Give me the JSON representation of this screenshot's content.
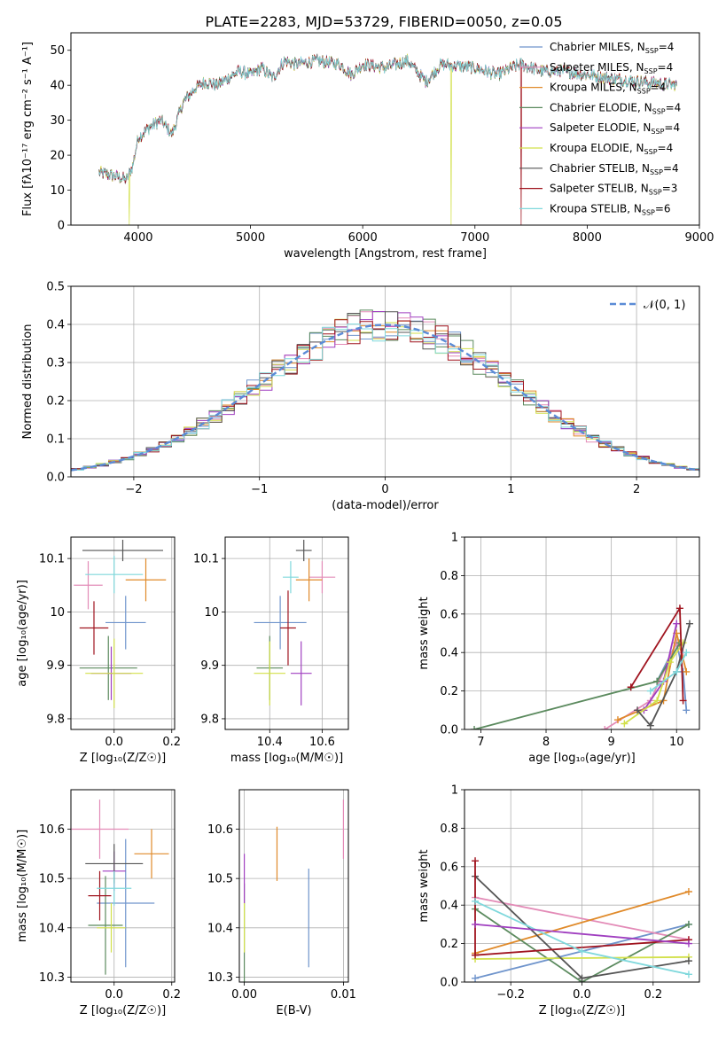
{
  "figure_title": "PLATE=2283, MJD=53729, FIBERID=0050, z=0.05",
  "models": [
    {
      "name": "Chabrier MILES",
      "nssp": "4",
      "color": "#6f94cc"
    },
    {
      "name": "Salpeter MILES",
      "nssp": "4",
      "color": "#e38bb7"
    },
    {
      "name": "Kroupa MILES",
      "nssp": "4",
      "color": "#e08a2a"
    },
    {
      "name": "Chabrier ELODIE",
      "nssp": "4",
      "color": "#5b8a5e"
    },
    {
      "name": "Salpeter ELODIE",
      "nssp": "4",
      "color": "#a03fc0"
    },
    {
      "name": "Kroupa ELODIE",
      "nssp": "4",
      "color": "#d2e04a"
    },
    {
      "name": "Chabrier STELIB",
      "nssp": "4",
      "color": "#555555"
    },
    {
      "name": "Salpeter STELIB",
      "nssp": "3",
      "color": "#a0141f"
    },
    {
      "name": "Kroupa STELIB",
      "nssp": "6",
      "color": "#7fd8dc"
    }
  ],
  "chart_data": [
    {
      "id": "spectrum",
      "type": "line",
      "xlabel": "wavelength [Angstrom, rest frame]",
      "ylabel": "Flux [fλ10⁻¹⁷ erg cm⁻² s⁻¹ A⁻¹]",
      "xlim": [
        3400,
        9000
      ],
      "ylim": [
        0,
        55
      ],
      "xticks": [
        4000,
        5000,
        6000,
        7000,
        8000,
        9000
      ],
      "yticks": [
        0,
        10,
        20,
        30,
        40,
        50
      ],
      "grid": false,
      "legend_position": "right",
      "x_range_data": [
        3650,
        8800
      ],
      "flux_shape": [
        [
          3650,
          15
        ],
        [
          3800,
          14
        ],
        [
          3900,
          13
        ],
        [
          3950,
          17
        ],
        [
          4000,
          25
        ],
        [
          4100,
          28
        ],
        [
          4200,
          30
        ],
        [
          4300,
          26
        ],
        [
          4400,
          35
        ],
        [
          4500,
          39
        ],
        [
          4600,
          41
        ],
        [
          4700,
          40
        ],
        [
          4800,
          42
        ],
        [
          4900,
          44
        ],
        [
          5000,
          43
        ],
        [
          5100,
          45
        ],
        [
          5200,
          42
        ],
        [
          5300,
          47
        ],
        [
          5400,
          46
        ],
        [
          5600,
          47
        ],
        [
          5800,
          46
        ],
        [
          5900,
          43
        ],
        [
          6000,
          46
        ],
        [
          6200,
          45
        ],
        [
          6400,
          47
        ],
        [
          6563,
          41
        ],
        [
          6700,
          46
        ],
        [
          7000,
          45
        ],
        [
          7200,
          43
        ],
        [
          7400,
          46
        ],
        [
          7600,
          44
        ],
        [
          7800,
          44
        ],
        [
          8000,
          43
        ],
        [
          8200,
          42
        ],
        [
          8500,
          41
        ],
        [
          8800,
          40
        ]
      ],
      "drops": [
        {
          "x": 3920,
          "model": 5
        },
        {
          "x": 6790,
          "model": 5
        },
        {
          "x": 7410,
          "model": 7
        }
      ]
    },
    {
      "id": "residuals",
      "type": "line",
      "xlabel": "(data-model)/error",
      "ylabel": "Normed distribution",
      "xlim": [
        -2.5,
        2.5
      ],
      "ylim": [
        0,
        0.5
      ],
      "xticks": [
        -2,
        -1,
        0,
        1,
        2
      ],
      "yticks": [
        0.0,
        0.1,
        0.2,
        0.3,
        0.4,
        0.5
      ],
      "grid": true,
      "legend_position": "top-right",
      "reference_label": "𝒩(0, 1)",
      "reference_color": "#5b8bd6",
      "bin_width": 0.1,
      "bin_start": -2.5
    },
    {
      "id": "age_vs_Z",
      "type": "scatter",
      "xlabel": "Z [log₁₀(Z/Z☉)]",
      "ylabel": "age  [log₁₀(age/yr)]",
      "xlim": [
        -0.15,
        0.21
      ],
      "ylim": [
        9.78,
        10.14
      ],
      "xticks": [
        0.0,
        0.2
      ],
      "yticks": [
        9.8,
        9.9,
        10.0,
        10.1
      ],
      "grid": true,
      "points": [
        {
          "model": 0,
          "x": 0.04,
          "xerr": 0.07,
          "y": 9.98,
          "yerr": 0.05
        },
        {
          "model": 1,
          "x": -0.09,
          "xerr": 0.05,
          "y": 10.05,
          "yerr": 0.045
        },
        {
          "model": 2,
          "x": 0.11,
          "xerr": 0.07,
          "y": 10.06,
          "yerr": 0.04
        },
        {
          "model": 3,
          "x": -0.02,
          "xerr": 0.1,
          "y": 9.895,
          "yerr": 0.06
        },
        {
          "model": 4,
          "x": -0.01,
          "xerr": 0.07,
          "y": 9.885,
          "yerr": 0.05
        },
        {
          "model": 5,
          "x": 0.0,
          "xerr": 0.1,
          "y": 9.885,
          "yerr": 0.065
        },
        {
          "model": 6,
          "x": 0.03,
          "xerr": 0.14,
          "y": 10.115,
          "yerr": 0.02
        },
        {
          "model": 7,
          "x": -0.07,
          "xerr": 0.05,
          "y": 9.97,
          "yerr": 0.05
        },
        {
          "model": 8,
          "x": 0.0,
          "xerr": 0.1,
          "y": 10.07,
          "yerr": 0.035
        }
      ]
    },
    {
      "id": "age_vs_mass",
      "type": "scatter",
      "xlabel": "mass [log₁₀(M/M☉)]",
      "ylabel": "",
      "xlim": [
        10.23,
        10.7
      ],
      "ylim": [
        9.78,
        10.14
      ],
      "xticks": [
        10.4,
        10.6
      ],
      "yticks": [
        9.8,
        9.9,
        10.0,
        10.1
      ],
      "grid": true,
      "points": [
        {
          "model": 0,
          "x": 10.44,
          "xerr": 0.1,
          "y": 9.98,
          "yerr": 0.05
        },
        {
          "model": 1,
          "x": 10.6,
          "xerr": 0.05,
          "y": 10.065,
          "yerr": 0.03
        },
        {
          "model": 2,
          "x": 10.55,
          "xerr": 0.05,
          "y": 10.06,
          "yerr": 0.04
        },
        {
          "model": 3,
          "x": 10.4,
          "xerr": 0.05,
          "y": 9.895,
          "yerr": 0.06
        },
        {
          "model": 4,
          "x": 10.52,
          "xerr": 0.04,
          "y": 9.885,
          "yerr": 0.06
        },
        {
          "model": 5,
          "x": 10.4,
          "xerr": 0.06,
          "y": 9.885,
          "yerr": 0.06
        },
        {
          "model": 6,
          "x": 10.53,
          "xerr": 0.03,
          "y": 10.115,
          "yerr": 0.02
        },
        {
          "model": 7,
          "x": 10.47,
          "xerr": 0.03,
          "y": 9.97,
          "yerr": 0.07
        },
        {
          "model": 8,
          "x": 10.48,
          "xerr": 0.03,
          "y": 10.065,
          "yerr": 0.03
        }
      ]
    },
    {
      "id": "weight_vs_age",
      "type": "line",
      "xlabel": "age  [log₁₀(age/yr)]",
      "ylabel": "mass weight",
      "xlim": [
        6.75,
        10.35
      ],
      "ylim": [
        0,
        1
      ],
      "xticks": [
        7,
        8,
        9,
        10
      ],
      "yticks": [
        0.0,
        0.2,
        0.4,
        0.6,
        0.8,
        1.0
      ],
      "grid": true,
      "series": [
        {
          "model": 0,
          "x": [
            9.7,
            10.0,
            10.1,
            10.15
          ],
          "y": [
            0.25,
            0.45,
            0.3,
            0.1
          ]
        },
        {
          "model": 1,
          "x": [
            8.9,
            9.6,
            10.0,
            10.1
          ],
          "y": [
            0.0,
            0.15,
            0.45,
            0.4
          ]
        },
        {
          "model": 2,
          "x": [
            9.1,
            9.8,
            10.0,
            10.15
          ],
          "y": [
            0.05,
            0.15,
            0.5,
            0.3
          ]
        },
        {
          "model": 3,
          "x": [
            6.9,
            9.7,
            10.05
          ],
          "y": [
            0.0,
            0.25,
            0.45
          ]
        },
        {
          "model": 4,
          "x": [
            9.5,
            9.8,
            10.0
          ],
          "y": [
            0.1,
            0.25,
            0.55
          ]
        },
        {
          "model": 5,
          "x": [
            9.2,
            9.7,
            9.9,
            10.1
          ],
          "y": [
            0.03,
            0.15,
            0.35,
            0.45
          ]
        },
        {
          "model": 6,
          "x": [
            9.4,
            9.6,
            10.0,
            10.2
          ],
          "y": [
            0.1,
            0.02,
            0.3,
            0.55
          ]
        },
        {
          "model": 7,
          "x": [
            9.3,
            10.05,
            10.1
          ],
          "y": [
            0.22,
            0.63,
            0.15
          ]
        },
        {
          "model": 8,
          "x": [
            9.6,
            10.0,
            10.15
          ],
          "y": [
            0.2,
            0.3,
            0.4
          ]
        }
      ]
    },
    {
      "id": "mass_vs_Z",
      "type": "scatter",
      "xlabel": "Z [log₁₀(Z/Z☉)]",
      "ylabel": "mass [log₁₀(M/M☉)]",
      "xlim": [
        -0.15,
        0.21
      ],
      "ylim": [
        10.29,
        10.68
      ],
      "xticks": [
        0.0,
        0.2
      ],
      "yticks": [
        10.3,
        10.4,
        10.5,
        10.6
      ],
      "grid": true,
      "points": [
        {
          "model": 0,
          "x": 0.04,
          "xerr": 0.1,
          "y": 10.45,
          "yerr": 0.13
        },
        {
          "model": 1,
          "x": -0.05,
          "xerr": 0.1,
          "y": 10.6,
          "yerr": 0.06
        },
        {
          "model": 2,
          "x": 0.13,
          "xerr": 0.06,
          "y": 10.55,
          "yerr": 0.05
        },
        {
          "model": 3,
          "x": -0.03,
          "xerr": 0.06,
          "y": 10.405,
          "yerr": 0.1
        },
        {
          "model": 4,
          "x": 0.0,
          "xerr": 0.04,
          "y": 10.515,
          "yerr": 0.04
        },
        {
          "model": 5,
          "x": -0.01,
          "xerr": 0.05,
          "y": 10.4,
          "yerr": 0.05
        },
        {
          "model": 6,
          "x": 0.0,
          "xerr": 0.1,
          "y": 10.53,
          "yerr": 0.04
        },
        {
          "model": 7,
          "x": -0.05,
          "xerr": 0.04,
          "y": 10.465,
          "yerr": 0.05
        },
        {
          "model": 8,
          "x": 0.0,
          "xerr": 0.06,
          "y": 10.48,
          "yerr": 0.035
        }
      ]
    },
    {
      "id": "mass_vs_ebv",
      "type": "scatter",
      "xlabel": "E(B-V)",
      "ylabel": "",
      "xlim": [
        -0.0005,
        0.0105
      ],
      "ylim": [
        10.29,
        10.68
      ],
      "xticks": [
        0.0,
        0.01
      ],
      "yticks": [
        10.3,
        10.4,
        10.5,
        10.6
      ],
      "grid": true,
      "points": [
        {
          "model": 0,
          "x": 0.0065,
          "xerr": 0,
          "y": 10.42,
          "yerr": 0.1
        },
        {
          "model": 1,
          "x": 0.01,
          "xerr": 0,
          "y": 10.6,
          "yerr": 0.06
        },
        {
          "model": 2,
          "x": 0.0033,
          "xerr": 0,
          "y": 10.55,
          "yerr": 0.055
        },
        {
          "model": 3,
          "x": 0.0,
          "xerr": 0,
          "y": 10.39,
          "yerr": 0.1
        },
        {
          "model": 5,
          "x": 0.0,
          "xerr": 0,
          "y": 10.4,
          "yerr": 0.05
        },
        {
          "model": 4,
          "x": 0.0,
          "xerr": 0,
          "y": 10.5,
          "yerr": 0.05
        }
      ]
    },
    {
      "id": "weight_vs_Z",
      "type": "line",
      "xlabel": "Z [log₁₀(Z/Z☉)]",
      "ylabel": "mass weight",
      "xlim": [
        -0.33,
        0.33
      ],
      "ylim": [
        0,
        1
      ],
      "xticks": [
        -0.2,
        0.0,
        0.2
      ],
      "yticks": [
        0.0,
        0.2,
        0.4,
        0.6,
        0.8,
        1.0
      ],
      "grid": true,
      "series": [
        {
          "model": 0,
          "x": [
            -0.3,
            0.3
          ],
          "y": [
            0.02,
            0.3
          ]
        },
        {
          "model": 1,
          "x": [
            -0.3,
            0.3
          ],
          "y": [
            0.44,
            0.22
          ]
        },
        {
          "model": 2,
          "x": [
            -0.3,
            0.3
          ],
          "y": [
            0.15,
            0.47
          ]
        },
        {
          "model": 3,
          "x": [
            -0.3,
            0.0,
            0.3
          ],
          "y": [
            0.38,
            0.0,
            0.3
          ]
        },
        {
          "model": 5,
          "x": [
            -0.3,
            0.3
          ],
          "y": [
            0.12,
            0.13
          ]
        },
        {
          "model": 6,
          "x": [
            -0.3,
            0.0,
            0.3
          ],
          "y": [
            0.55,
            0.02,
            0.11
          ]
        },
        {
          "model": 7,
          "x": [
            -0.3,
            -0.3,
            0.3
          ],
          "y": [
            0.63,
            0.14,
            0.22
          ]
        },
        {
          "model": 8,
          "x": [
            -0.3,
            0.0,
            0.3
          ],
          "y": [
            0.42,
            0.16,
            0.04
          ]
        },
        {
          "model": 4,
          "x": [
            -0.3,
            0.3
          ],
          "y": [
            0.3,
            0.2
          ]
        }
      ]
    }
  ]
}
